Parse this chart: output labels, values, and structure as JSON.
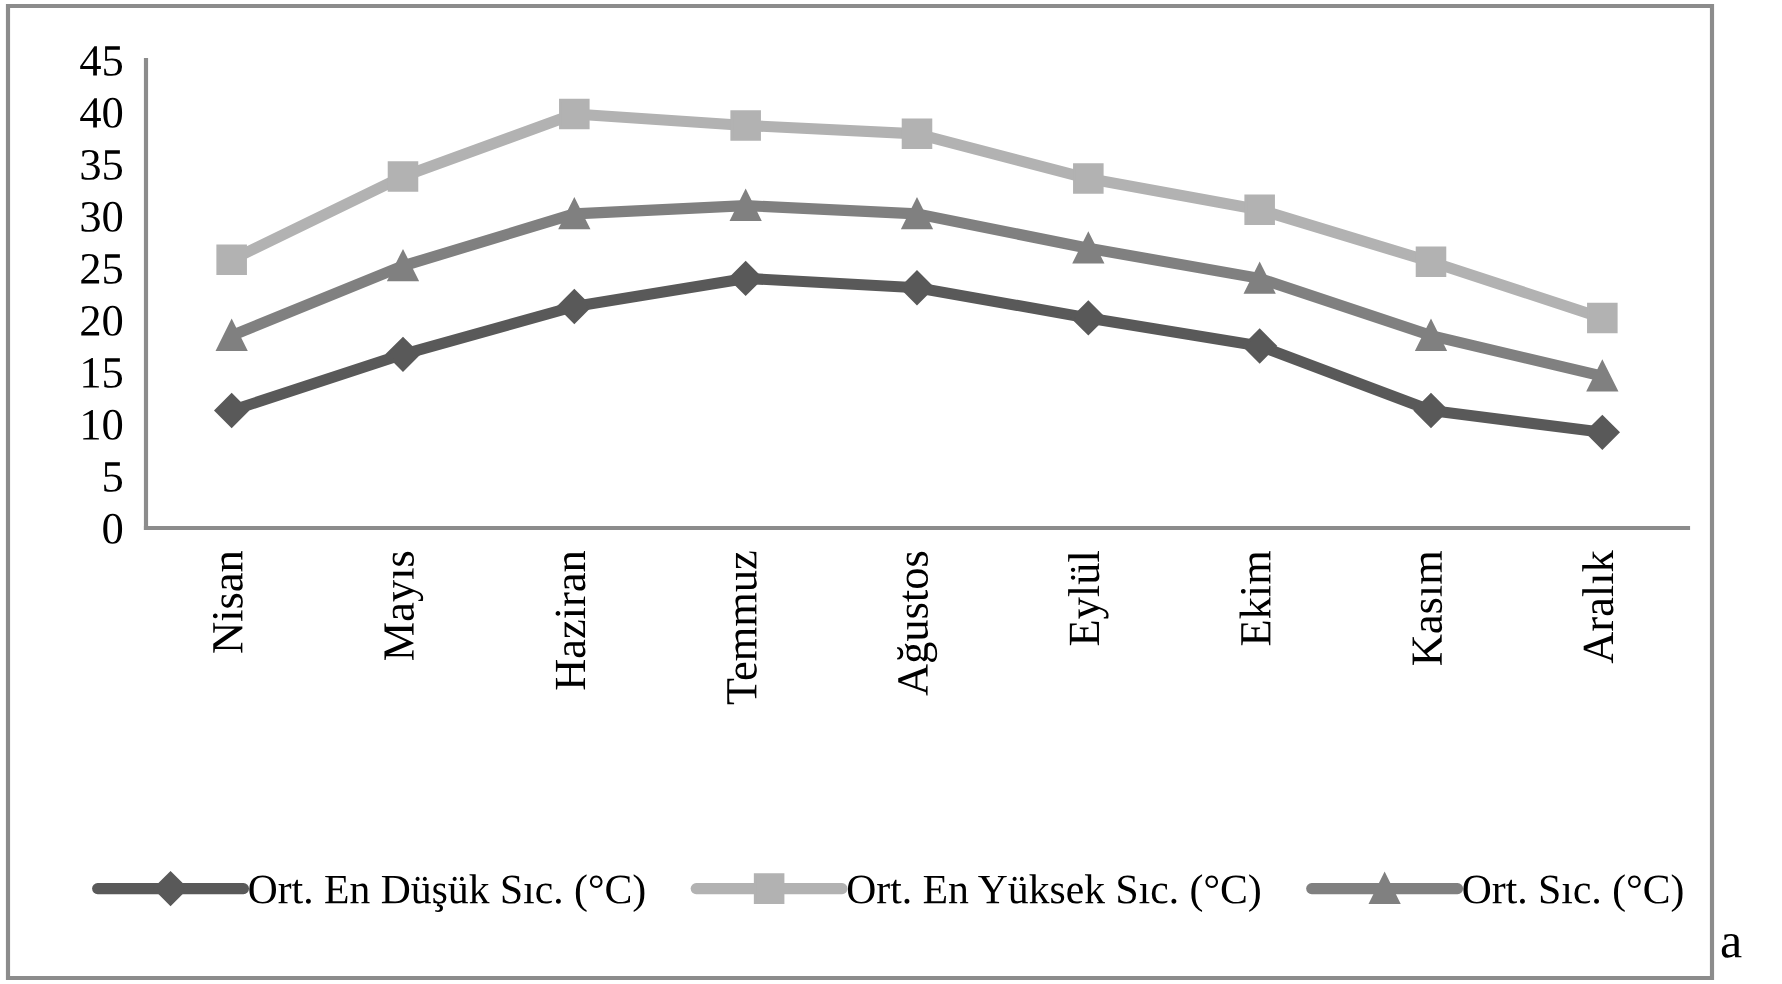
{
  "chart_data": {
    "type": "line",
    "categories": [
      "Nisan",
      "Mayıs",
      "Haziran",
      "Temmuz",
      "Ağustos",
      "Eylül",
      "Ekim",
      "Kasım",
      "Aralık"
    ],
    "series": [
      {
        "name": "Ort. En Düşük Sıc. (°C)",
        "color": "#595959",
        "marker": "diamond",
        "values": [
          11.3,
          16.7,
          21.3,
          24.0,
          23.1,
          20.2,
          17.5,
          11.3,
          9.2
        ]
      },
      {
        "name": "Ort. En Yüksek Sıc. (°C)",
        "color": "#b2b2b2",
        "marker": "square",
        "values": [
          25.8,
          33.8,
          39.8,
          38.7,
          37.9,
          33.6,
          30.6,
          25.6,
          20.2
        ]
      },
      {
        "name": "Ort. Sıc. (°C)",
        "color": "#808080",
        "marker": "triangle",
        "values": [
          18.5,
          25.2,
          30.2,
          31.0,
          30.2,
          26.9,
          24.0,
          18.5,
          14.6
        ]
      }
    ],
    "ylim": [
      0,
      45
    ],
    "yticks": [
      0,
      5,
      10,
      15,
      20,
      25,
      30,
      35,
      40,
      45
    ],
    "grid": false,
    "legend": "bottom",
    "line_style": "solid",
    "annotations": [
      "a"
    ]
  }
}
